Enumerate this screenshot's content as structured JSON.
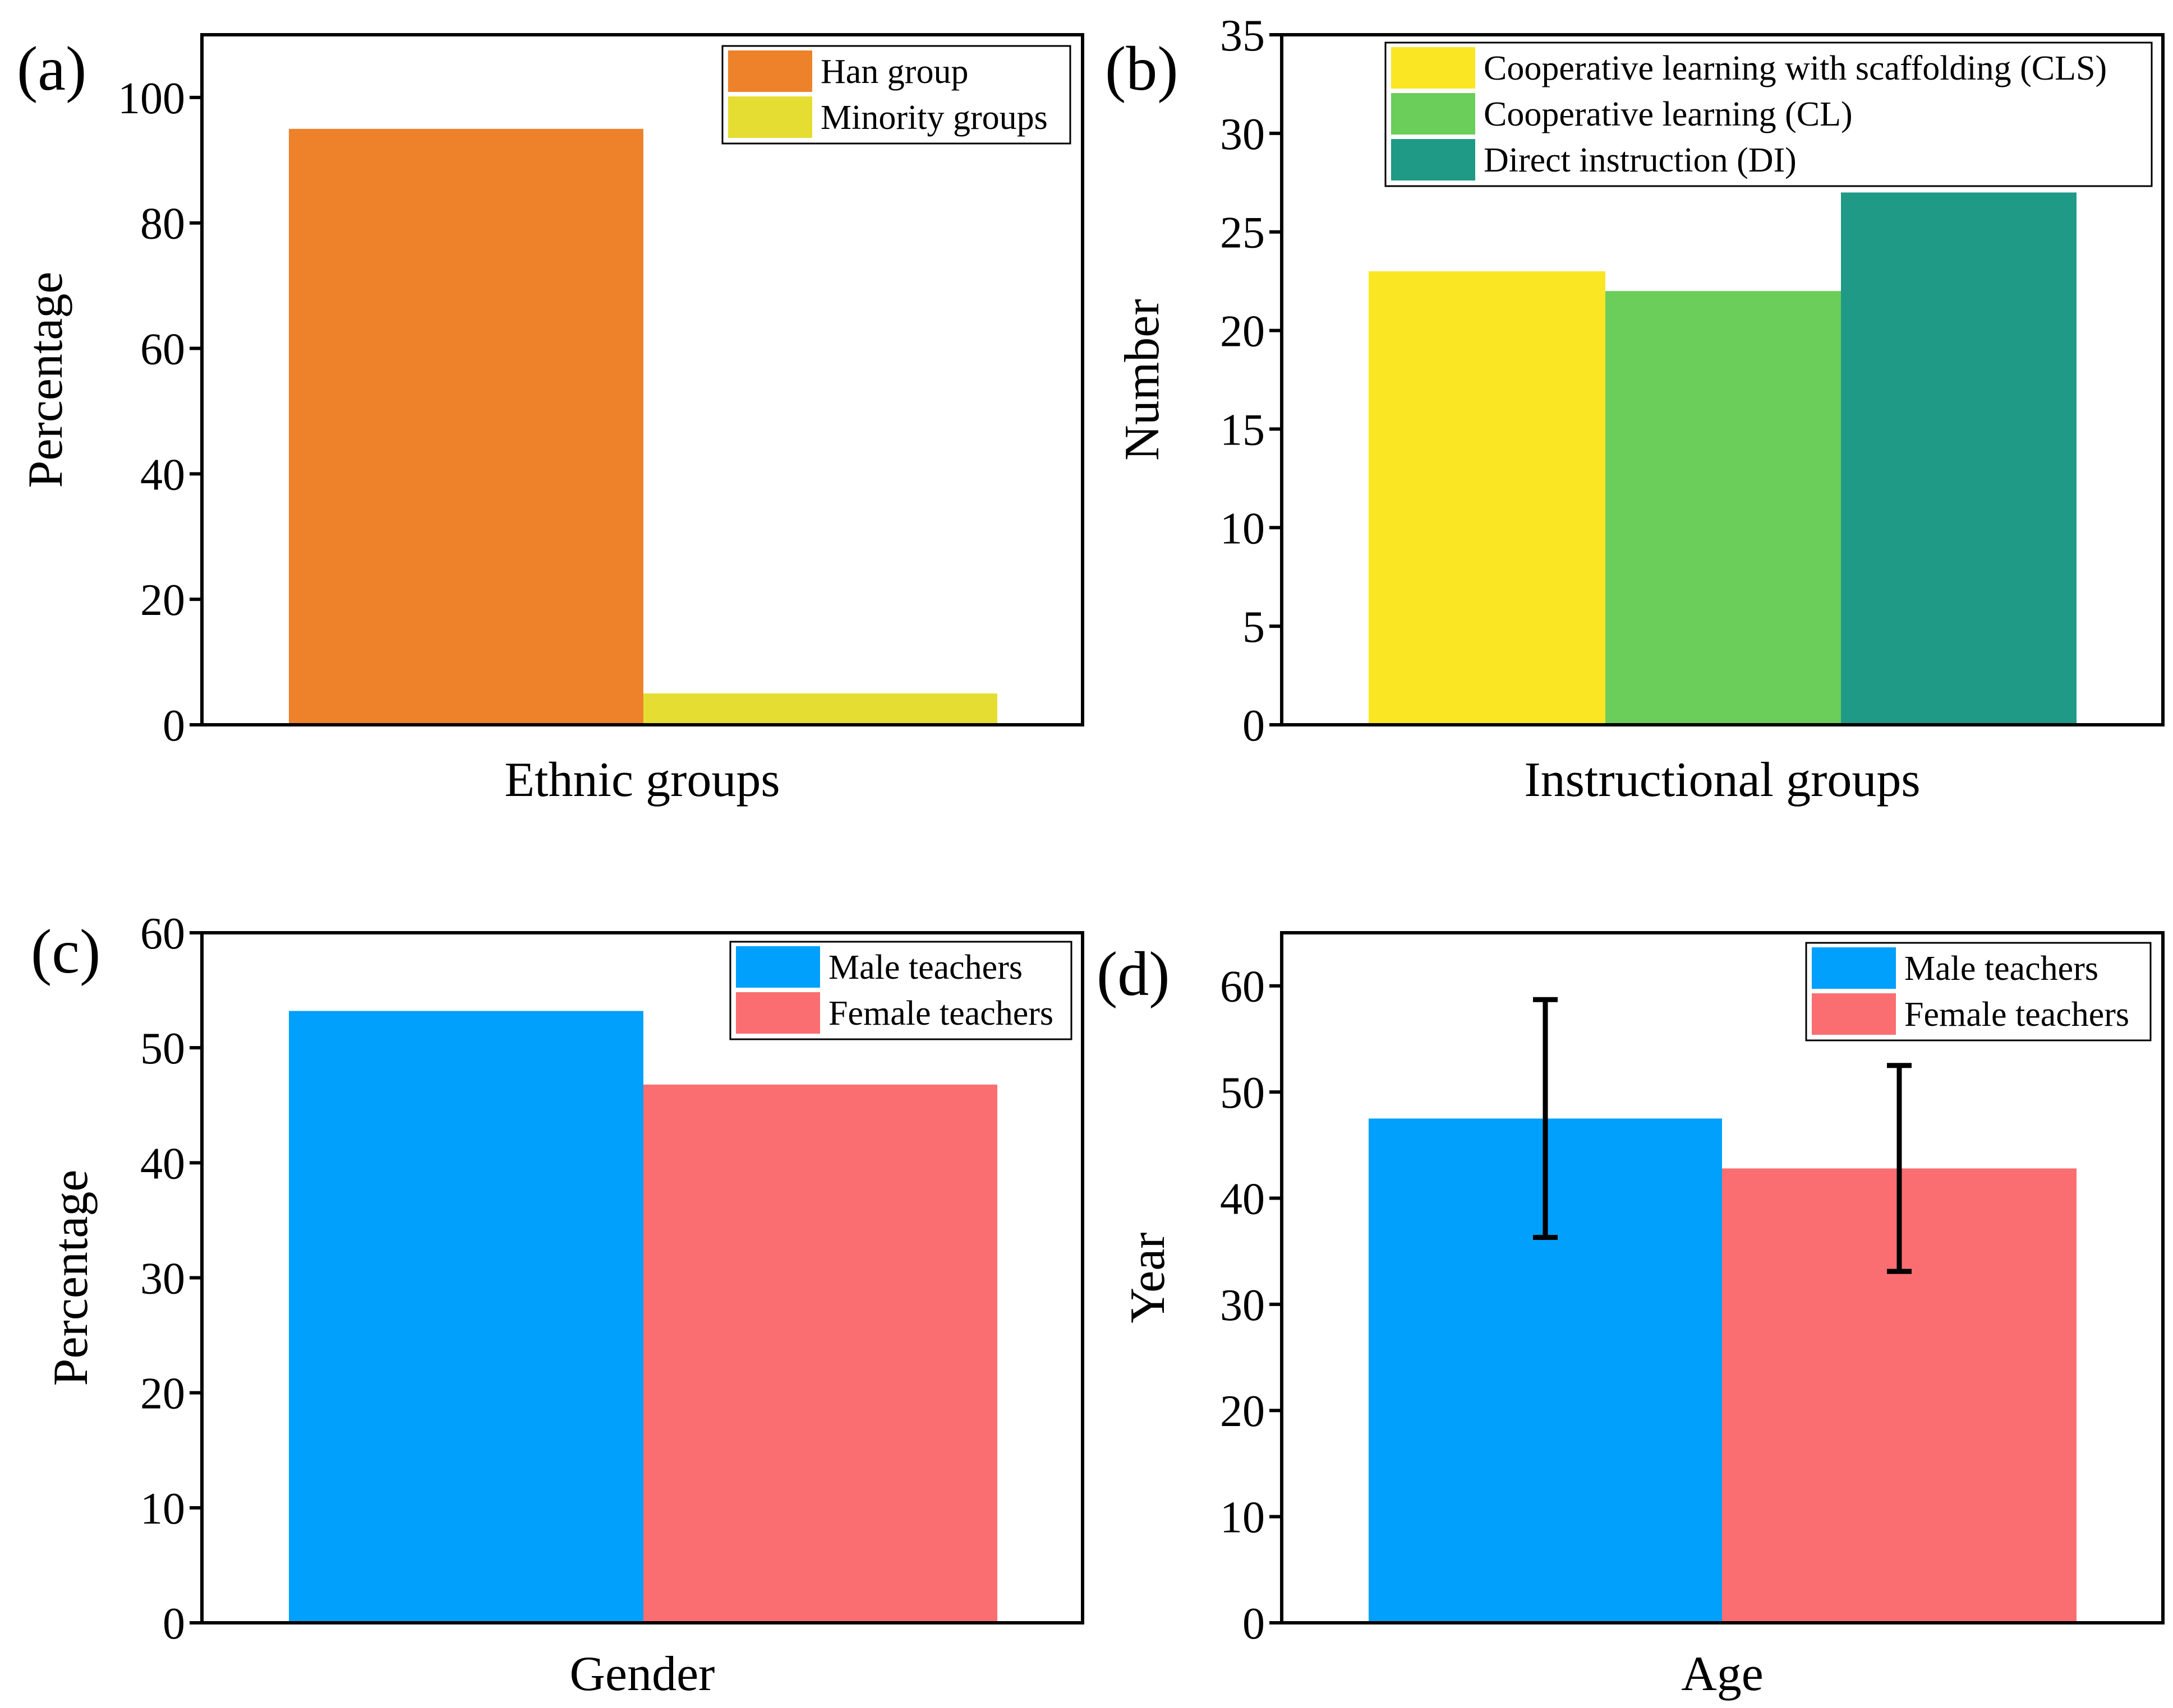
{
  "chart_data": [
    {
      "panel": "(a)",
      "type": "bar",
      "xlabel": "Ethnic groups",
      "ylabel": "Percentage",
      "ylim": [
        0,
        110
      ],
      "yticks": [
        0,
        20,
        40,
        60,
        80,
        100
      ],
      "legend": "top-right",
      "series": [
        {
          "name": "Han group",
          "value": 95,
          "color": "#EE822A"
        },
        {
          "name": "Minority groups",
          "value": 5,
          "color": "#E6DD33"
        }
      ]
    },
    {
      "panel": "(b)",
      "type": "bar",
      "xlabel": "Instructional groups",
      "ylabel": "Number",
      "ylim": [
        0,
        35
      ],
      "yticks": [
        0,
        5,
        10,
        15,
        20,
        25,
        30,
        35
      ],
      "legend": "top-right",
      "series": [
        {
          "name": "Cooperative learning with scaffolding (CLS)",
          "value": 23,
          "color": "#FBE623"
        },
        {
          "name": "Cooperative learning (CL)",
          "value": 22,
          "color": "#6BCD5A"
        },
        {
          "name": "Direct instruction (DI)",
          "value": 27,
          "color": "#1F9A86"
        }
      ]
    },
    {
      "panel": "(c)",
      "type": "bar",
      "xlabel": "Gender",
      "ylabel": "Percentage",
      "ylim": [
        0,
        60
      ],
      "yticks": [
        0,
        10,
        20,
        30,
        40,
        50,
        60
      ],
      "legend": "top-right",
      "series": [
        {
          "name": "Male teachers",
          "value": 53.2,
          "color": "#01A0FC"
        },
        {
          "name": "Female teachers",
          "value": 46.8,
          "color": "#FA6E72"
        }
      ]
    },
    {
      "panel": "(d)",
      "type": "bar",
      "xlabel": "Age",
      "ylabel": "Year",
      "ylim": [
        0,
        65
      ],
      "yticks": [
        0,
        10,
        20,
        30,
        40,
        50,
        60
      ],
      "legend": "top-right",
      "series": [
        {
          "name": "Male teachers",
          "value": 47.5,
          "error": 11.2,
          "color": "#01A0FC"
        },
        {
          "name": "Female teachers",
          "value": 42.8,
          "error": 9.7,
          "color": "#FA6E72"
        }
      ]
    }
  ]
}
